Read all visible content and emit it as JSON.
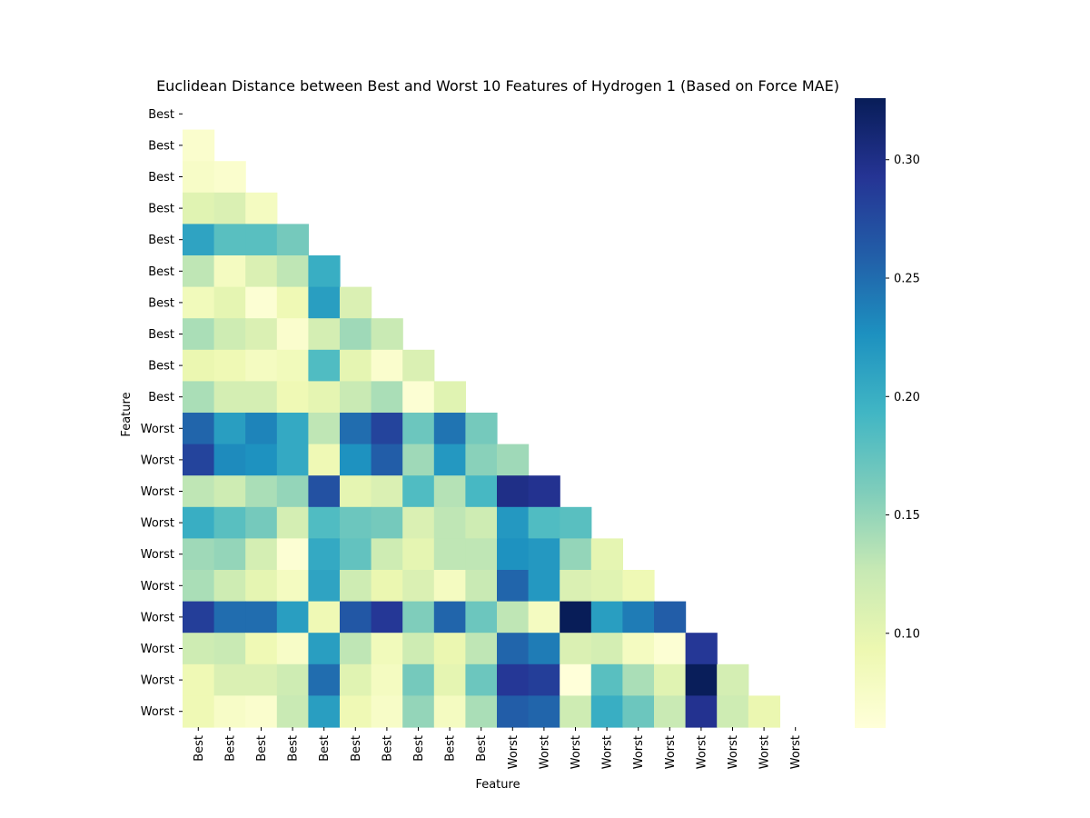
{
  "chart_data": {
    "type": "heatmap",
    "title": "Euclidean Distance between Best and Worst 10 Features of Hydrogen 1 (Based on Force MAE)",
    "xlabel": "Feature",
    "ylabel": "Feature",
    "row_labels": [
      "Best",
      "Best",
      "Best",
      "Best",
      "Best",
      "Best",
      "Best",
      "Best",
      "Best",
      "Best",
      "Worst",
      "Worst",
      "Worst",
      "Worst",
      "Worst",
      "Worst",
      "Worst",
      "Worst",
      "Worst",
      "Worst"
    ],
    "col_labels": [
      "Best",
      "Best",
      "Best",
      "Best",
      "Best",
      "Best",
      "Best",
      "Best",
      "Best",
      "Best",
      "Worst",
      "Worst",
      "Worst",
      "Worst",
      "Worst",
      "Worst",
      "Worst",
      "Worst",
      "Worst",
      "Worst"
    ],
    "mask": "upper-triangle-including-diagonal",
    "colormap": "YlGnBu",
    "vmin": 0.06,
    "vmax": 0.326,
    "colorbar_ticks": [
      0.1,
      0.15,
      0.2,
      0.25,
      0.3
    ],
    "colorbar_tick_labels": [
      "0.10",
      "0.15",
      "0.20",
      "0.25",
      "0.30"
    ],
    "values": [
      [],
      [
        0.07
      ],
      [
        0.075,
        0.07
      ],
      [
        0.105,
        0.11,
        0.08
      ],
      [
        0.21,
        0.18,
        0.18,
        0.165
      ],
      [
        0.13,
        0.08,
        0.11,
        0.13,
        0.2
      ],
      [
        0.085,
        0.1,
        0.065,
        0.09,
        0.215,
        0.11
      ],
      [
        0.14,
        0.12,
        0.11,
        0.07,
        0.115,
        0.145,
        0.125
      ],
      [
        0.095,
        0.09,
        0.08,
        0.085,
        0.185,
        0.1,
        0.07,
        0.11
      ],
      [
        0.14,
        0.115,
        0.115,
        0.09,
        0.1,
        0.125,
        0.14,
        0.065,
        0.105
      ],
      [
        0.255,
        0.215,
        0.235,
        0.205,
        0.13,
        0.25,
        0.28,
        0.17,
        0.245,
        0.165
      ],
      [
        0.28,
        0.23,
        0.225,
        0.205,
        0.09,
        0.225,
        0.26,
        0.145,
        0.22,
        0.155,
        0.145
      ],
      [
        0.13,
        0.12,
        0.14,
        0.15,
        0.27,
        0.1,
        0.11,
        0.185,
        0.135,
        0.19,
        0.3,
        0.295
      ],
      [
        0.2,
        0.18,
        0.165,
        0.115,
        0.185,
        0.17,
        0.165,
        0.11,
        0.13,
        0.12,
        0.22,
        0.185,
        0.18
      ],
      [
        0.145,
        0.15,
        0.115,
        0.065,
        0.205,
        0.175,
        0.12,
        0.1,
        0.13,
        0.13,
        0.225,
        0.22,
        0.15,
        0.1
      ],
      [
        0.14,
        0.12,
        0.1,
        0.08,
        0.21,
        0.12,
        0.095,
        0.11,
        0.08,
        0.125,
        0.255,
        0.22,
        0.11,
        0.105,
        0.09
      ],
      [
        0.285,
        0.25,
        0.25,
        0.215,
        0.09,
        0.265,
        0.29,
        0.16,
        0.255,
        0.17,
        0.13,
        0.08,
        0.326,
        0.215,
        0.24,
        0.26
      ],
      [
        0.12,
        0.125,
        0.09,
        0.075,
        0.215,
        0.13,
        0.085,
        0.12,
        0.095,
        0.13,
        0.255,
        0.24,
        0.11,
        0.115,
        0.08,
        0.065,
        0.29
      ],
      [
        0.09,
        0.11,
        0.11,
        0.12,
        0.25,
        0.105,
        0.08,
        0.165,
        0.1,
        0.17,
        0.29,
        0.285,
        0.06,
        0.18,
        0.14,
        0.105,
        0.325,
        0.115
      ],
      [
        0.09,
        0.075,
        0.07,
        0.125,
        0.215,
        0.09,
        0.075,
        0.15,
        0.08,
        0.14,
        0.26,
        0.255,
        0.12,
        0.2,
        0.17,
        0.125,
        0.295,
        0.12,
        0.095
      ]
    ]
  }
}
